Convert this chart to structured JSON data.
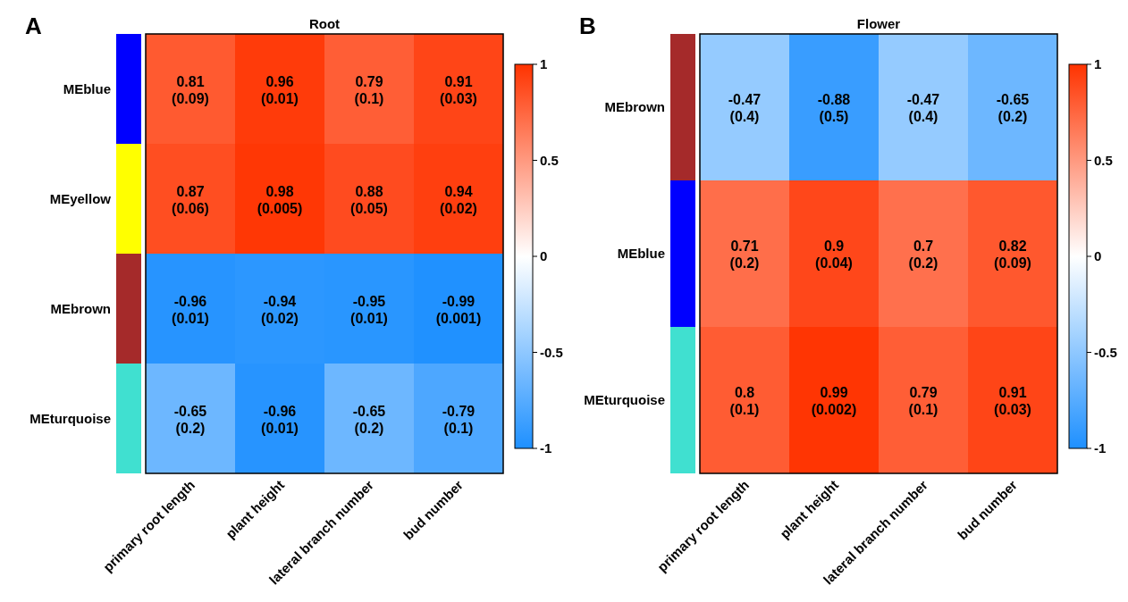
{
  "chart_data": [
    {
      "type": "heatmap",
      "title": "Root",
      "annotations": [
        "A"
      ],
      "categories": [
        "primary root length",
        "plant height",
        "lateral branch number",
        "bud number"
      ],
      "y_categories": [
        "MEblue",
        "MEyellow",
        "MEbrown",
        "MEturquoise"
      ],
      "colors": [
        "#0000ff",
        "#ffff00",
        "#a52a2a",
        "#40e0d0"
      ],
      "cells": [
        [
          0.81,
          0.96,
          0.79,
          0.91
        ],
        [
          0.87,
          0.98,
          0.88,
          0.94
        ],
        [
          -0.96,
          -0.94,
          -0.95,
          -0.99
        ],
        [
          -0.65,
          -0.96,
          -0.65,
          -0.79
        ]
      ],
      "cell_labels": [
        [
          "0.81\n(0.09)",
          "0.96\n(0.01)",
          "0.79\n(0.1)",
          "0.91\n(0.03)"
        ],
        [
          "0.87\n(0.06)",
          "0.98\n(0.005)",
          "0.88\n(0.05)",
          "0.94\n(0.02)"
        ],
        [
          "-0.96\n(0.01)",
          "-0.94\n(0.02)",
          "-0.95\n(0.01)",
          "-0.99\n(0.001)"
        ],
        [
          "-0.65\n(0.2)",
          "-0.96\n(0.01)",
          "-0.65\n(0.2)",
          "-0.79\n(0.1)"
        ]
      ],
      "clim": [
        -1,
        1
      ],
      "cticks": [
        -1,
        -0.5,
        0,
        0.5,
        1
      ]
    },
    {
      "type": "heatmap",
      "title": "Flower",
      "annotations": [
        "B"
      ],
      "categories": [
        "primary root length",
        "plant height",
        "lateral branch number",
        "bud number"
      ],
      "y_categories": [
        "MEbrown",
        "MEblue",
        "MEturquoise"
      ],
      "colors": [
        "#a52a2a",
        "#0000ff",
        "#40e0d0"
      ],
      "cells": [
        [
          -0.47,
          -0.88,
          -0.47,
          -0.65
        ],
        [
          0.71,
          0.9,
          0.7,
          0.82
        ],
        [
          0.8,
          0.99,
          0.79,
          0.91
        ]
      ],
      "cell_labels": [
        [
          "-0.47\n(0.4)",
          "-0.88\n(0.5)",
          "-0.47\n(0.4)",
          "-0.65\n(0.2)"
        ],
        [
          "0.71\n(0.2)",
          "0.9\n(0.04)",
          "0.7\n(0.2)",
          "0.82\n(0.09)"
        ],
        [
          "0.8\n(0.1)",
          "0.99\n(0.002)",
          "0.79\n(0.1)",
          "0.91\n(0.03)"
        ]
      ],
      "clim": [
        -1,
        1
      ],
      "cticks": [
        -1,
        -0.5,
        0,
        0.5,
        1
      ]
    }
  ]
}
